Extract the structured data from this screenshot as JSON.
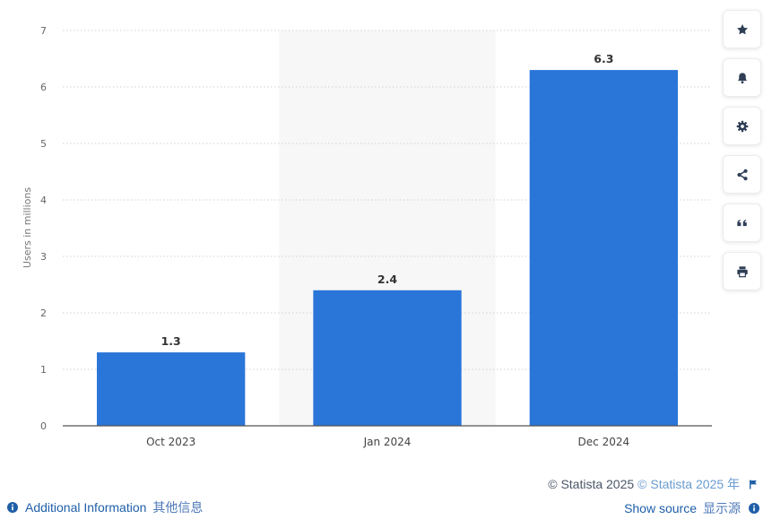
{
  "chart_data": {
    "type": "bar",
    "categories": [
      "Oct 2023",
      "Jan 2024",
      "Dec 2024"
    ],
    "values": [
      1.3,
      2.4,
      6.3
    ],
    "data_labels": [
      "1.3",
      "2.4",
      "6.3"
    ],
    "ylabel": "Users in millions",
    "ylim": [
      0,
      7
    ],
    "yticks": [
      "0",
      "1",
      "2",
      "3",
      "4",
      "5",
      "6",
      "7"
    ],
    "grid": true,
    "bar_color": "#2a75d8",
    "highlight_category": "Jan 2024"
  },
  "toolbar": {
    "buttons": [
      {
        "name": "favorite",
        "icon": "star-icon"
      },
      {
        "name": "notify",
        "icon": "bell-icon"
      },
      {
        "name": "settings",
        "icon": "gear-icon"
      },
      {
        "name": "share",
        "icon": "share-icon"
      },
      {
        "name": "cite",
        "icon": "quote-icon"
      },
      {
        "name": "print",
        "icon": "printer-icon"
      }
    ]
  },
  "footer": {
    "copyright": "© Statista 2025",
    "copyright_alt": "© Statista 2025 年",
    "additional_info": "Additional Information",
    "additional_info_cn": "其他信息",
    "show_source": "Show source",
    "show_source_cn": "显示源"
  }
}
